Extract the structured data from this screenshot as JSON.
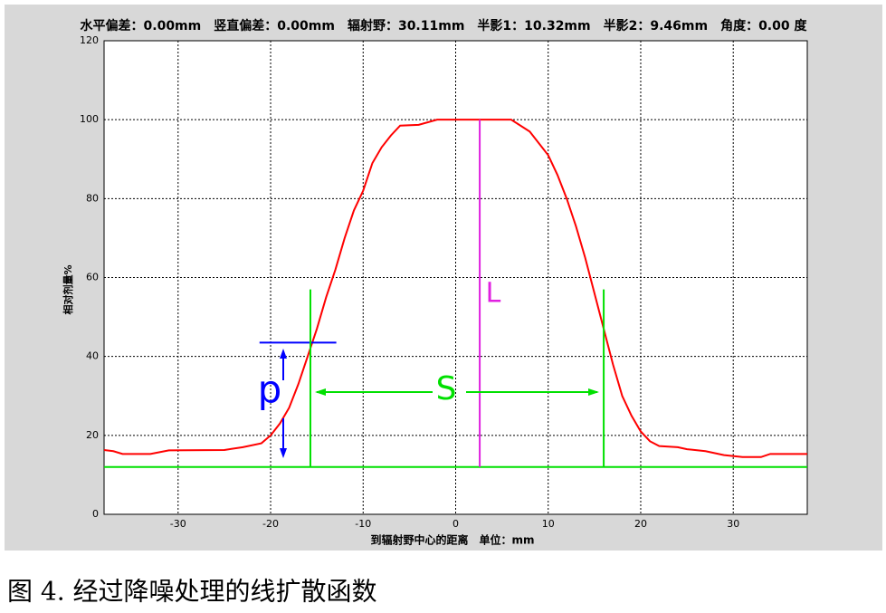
{
  "chart_data": {
    "type": "line",
    "title": "水平偏差：0.00mm　竖直偏差：0.00mm　辐射野：30.11mm　半影1：10.32mm　半影2：9.46mm　角度：0.00 度",
    "ylabel": "相对剂量%",
    "xlabel": "到辐射野中心的距离　单位：mm",
    "caption": "图 4. 经过降噪处理的线扩散函数",
    "xlim": [
      -38,
      38
    ],
    "xticks": [
      -30,
      -20,
      -10,
      0,
      10,
      20,
      30
    ],
    "ylim": [
      0,
      120
    ],
    "yticks": [
      0,
      20,
      40,
      60,
      80,
      100,
      120
    ],
    "grid": true,
    "series": [
      {
        "color": "#ff0000",
        "x": [
          -38,
          -37,
          -36,
          -33,
          -31,
          -25,
          -23,
          -21,
          -20,
          -19,
          -18,
          -17,
          -16,
          -15,
          -14,
          -13,
          -12,
          -11,
          -10,
          -9,
          -8,
          -7,
          -6,
          -4,
          -2,
          6,
          8,
          10,
          11,
          12,
          13,
          14,
          15,
          16,
          17,
          18,
          19,
          20,
          21,
          22,
          24,
          25,
          27,
          29,
          31,
          33,
          34,
          38
        ],
        "values": [
          16.3,
          16,
          15.3,
          15.3,
          16.2,
          16.3,
          17,
          18,
          20,
          23,
          27,
          33,
          40,
          47,
          55,
          62,
          70,
          77,
          82,
          89,
          93,
          96,
          98.5,
          98.7,
          100,
          100,
          97,
          91,
          86,
          80,
          73,
          65,
          56,
          47,
          38,
          30,
          25,
          21,
          18.5,
          17.3,
          17,
          16.5,
          16,
          15,
          14.5,
          14.5,
          15.3,
          15.3
        ]
      }
    ],
    "hlines": [
      {
        "y": 12,
        "x": [
          -38,
          38
        ],
        "color": "#00e000"
      },
      {
        "y": 43.5,
        "x": [
          -21.2,
          -12.9
        ],
        "color": "#0000ff"
      }
    ],
    "vlines": [
      {
        "x": -15.7,
        "y": [
          12,
          57
        ],
        "color": "#00e000"
      },
      {
        "x": 16,
        "y": [
          12,
          57
        ],
        "color": "#00e000"
      },
      {
        "x": 2.6,
        "y": [
          12,
          100
        ],
        "color": "#e020e0"
      }
    ],
    "annotations": [
      {
        "text": "L",
        "color": "#e020e0"
      },
      {
        "text": "S",
        "color": "#00e000"
      },
      {
        "text": "p",
        "color": "#0000ff"
      }
    ]
  }
}
